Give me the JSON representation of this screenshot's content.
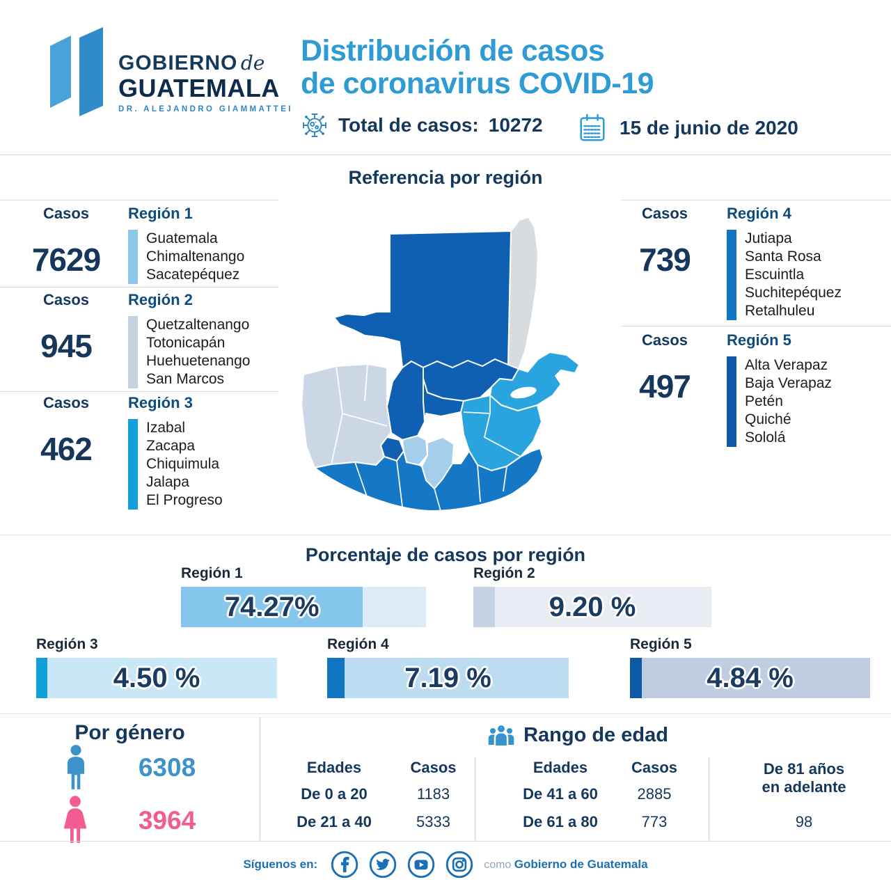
{
  "header": {
    "logo": {
      "gobierno": "GOBIERNO",
      "de": "de",
      "guatemala": "GUATEMALA",
      "subtitle": "DR. ALEJANDRO GIAMMATTEI"
    },
    "title_line1": "Distribución de casos",
    "title_line2": "de coronavirus COVID-19",
    "total_label": "Total de casos:",
    "total_value": "10272",
    "date": "15 de junio de 2020"
  },
  "map_section": {
    "title": "Referencia por región",
    "casos_label": "Casos",
    "belize_color": "#D9DCDF",
    "border_color": "#FFFFFF",
    "regions": [
      {
        "name": "Región 1",
        "cases": "7629",
        "color": "#8DC8EA",
        "map_color": "#A5CEEC",
        "departments": [
          "Guatemala",
          "Chimaltenango",
          "Sacatepéquez"
        ]
      },
      {
        "name": "Región 2",
        "cases": "945",
        "color": "#C5D3E1",
        "map_color": "#CBD7E4",
        "departments": [
          "Quetzaltenango",
          "Totonicapán",
          "Huehuetenango",
          "San Marcos"
        ]
      },
      {
        "name": "Región 3",
        "cases": "462",
        "color": "#12A0DB",
        "map_color": "#29A4DE",
        "departments": [
          "Izabal",
          "Zacapa",
          "Chiquimula",
          "Jalapa",
          "El Progreso"
        ]
      },
      {
        "name": "Región 4",
        "cases": "739",
        "color": "#1176C1",
        "map_color": "#1478C6",
        "departments": [
          "Jutiapa",
          "Santa Rosa",
          "Escuintla",
          "Suchitepéquez",
          "Retalhuleu"
        ]
      },
      {
        "name": "Región 5",
        "cases": "497",
        "color": "#0E58A6",
        "map_color": "#0F60B2",
        "departments": [
          "Alta Verapaz",
          "Baja Verapaz",
          "Petén",
          "Quiché",
          "Sololá"
        ]
      }
    ]
  },
  "chart_data": {
    "type": "bar",
    "title": "Porcentaje de casos por región",
    "categories": [
      "Región 1",
      "Región 2",
      "Región 3",
      "Región 4",
      "Región 5"
    ],
    "values": [
      74.27,
      9.2,
      4.5,
      7.19,
      4.84
    ],
    "labels": [
      "74.27%",
      "9.20 %",
      "4.50 %",
      "7.19 %",
      "4.84 %"
    ],
    "fill_colors": [
      "#85C6EC",
      "#C5D3E2",
      "#12A0DB",
      "#1176C1",
      "#0E58A6"
    ],
    "track_colors": [
      "#DCEBF7",
      "#E9EDF3",
      "#C9E8F7",
      "#BCDCF1",
      "#BFCDE2"
    ],
    "xlim": [
      0,
      100
    ],
    "region_cases": {
      "Región 1": 7629,
      "Región 2": 945,
      "Región 3": 462,
      "Región 4": 739,
      "Región 5": 497
    },
    "total_cases": 10272
  },
  "gender": {
    "title": "Por género",
    "male_value": "6308",
    "male_color": "#3E92CB",
    "female_value": "3964",
    "female_color": "#F25C93"
  },
  "age": {
    "title": "Rango de edad",
    "col_edades": "Edades",
    "col_casos": "Casos",
    "rows": [
      {
        "range": "De 0 a 20",
        "cases": "1183"
      },
      {
        "range": "De 21 a 40",
        "cases": "5333"
      },
      {
        "range": "De 41 a 60",
        "cases": "2885"
      },
      {
        "range": "De 61 a 80",
        "cases": "773"
      }
    ],
    "last_line1": "De 81 años",
    "last_line2": "en adelante",
    "last_value": "98"
  },
  "footer": {
    "follow_label": "Síguenos en:",
    "como": "como",
    "account": "Gobierno de Guatemala",
    "icon_color": "#1B6FB5"
  }
}
